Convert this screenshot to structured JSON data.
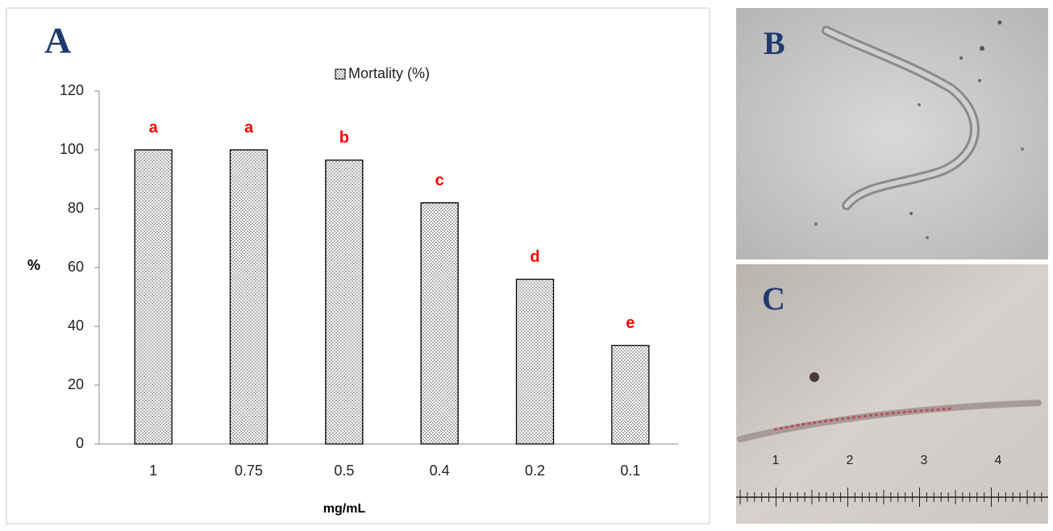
{
  "panel_labels": [
    "A",
    "B",
    "C"
  ],
  "chart_data": {
    "type": "bar",
    "categories": [
      "1",
      "0.75",
      "0.5",
      "0.4",
      "0.2",
      "0.1"
    ],
    "series": [
      {
        "name": "Mortality (%)",
        "color": "#000000",
        "values": [
          100,
          100,
          96.5,
          82,
          56,
          33.5
        ]
      }
    ],
    "significance_letters": [
      "a",
      "a",
      "b",
      "c",
      "d",
      "e"
    ],
    "letter_color": "#ff0000",
    "fill_pattern": "dots",
    "xlabel": "mg/mL",
    "ylabel": "%",
    "ylim": [
      0,
      120
    ],
    "yticks": [
      0,
      20,
      40,
      60,
      80,
      100,
      120
    ],
    "legend": "top",
    "grid": false
  },
  "photo_c": {
    "ruler_labels": [
      "1",
      "2",
      "3",
      "4"
    ]
  }
}
